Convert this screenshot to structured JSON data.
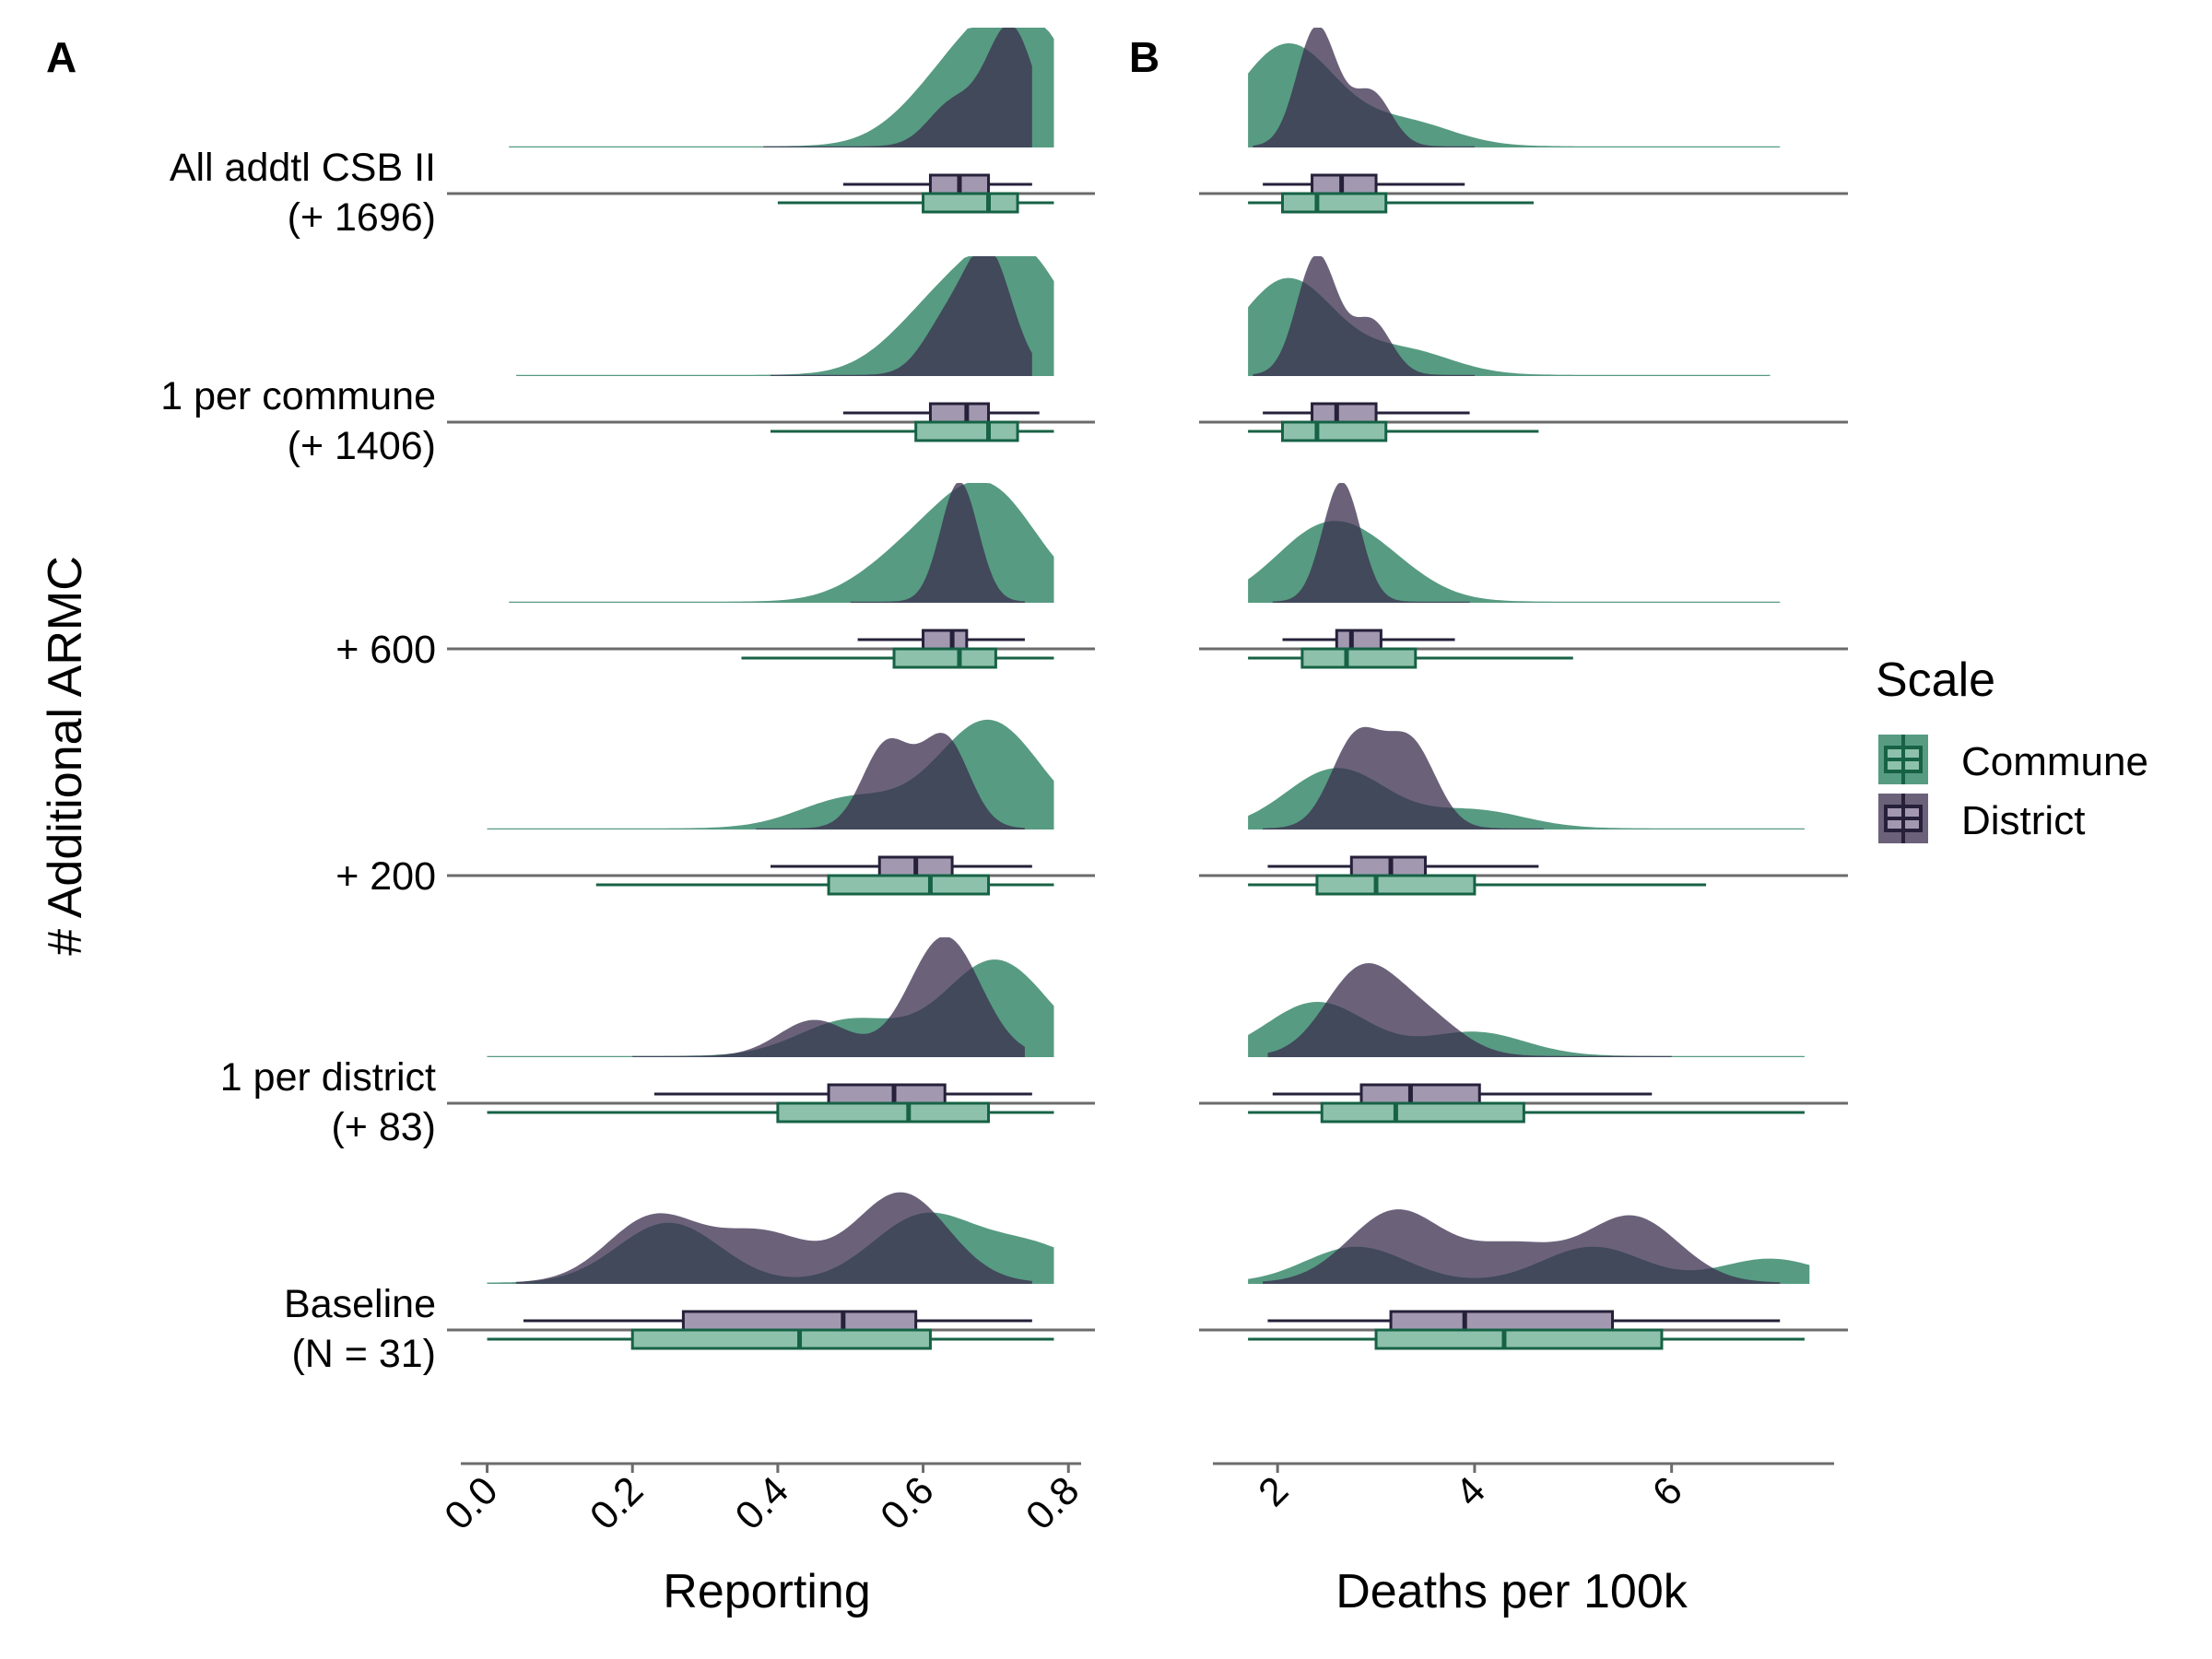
{
  "panels": [
    "A",
    "B"
  ],
  "y_axis_title": "# Additional ARMC",
  "legend": {
    "title": "Scale",
    "items": [
      {
        "label": "Commune",
        "fill": "#1f7a58",
        "line": "#176246"
      },
      {
        "label": "District",
        "fill": "#3a2d4e",
        "line": "#26203a"
      }
    ]
  },
  "chart_data": [
    {
      "type": "box",
      "panel": "A",
      "xlabel": "Reporting",
      "xlim": [
        -0.04,
        0.82
      ],
      "xticks": [
        0.0,
        0.2,
        0.4,
        0.6,
        0.8
      ],
      "xtick_labels": [
        "0.0",
        "0.2",
        "0.4",
        "0.6",
        "0.8"
      ],
      "categories": [
        [
          "All addtl CSB II",
          "(+ 1696)"
        ],
        [
          "1 per commune",
          "(+ 1406)"
        ],
        [
          "+ 600"
        ],
        [
          "+ 200"
        ],
        [
          "1 per district",
          "(+ 83)"
        ],
        [
          "Baseline",
          "(N = 31)"
        ]
      ],
      "series": [
        {
          "name": "District",
          "stats": [
            {
              "lo": 0.49,
              "q1": 0.61,
              "med": 0.65,
              "q3": 0.69,
              "hi": 0.75
            },
            {
              "lo": 0.49,
              "q1": 0.61,
              "med": 0.66,
              "q3": 0.69,
              "hi": 0.76
            },
            {
              "lo": 0.51,
              "q1": 0.6,
              "med": 0.64,
              "q3": 0.66,
              "hi": 0.74
            },
            {
              "lo": 0.39,
              "q1": 0.54,
              "med": 0.59,
              "q3": 0.64,
              "hi": 0.75
            },
            {
              "lo": 0.23,
              "q1": 0.47,
              "med": 0.56,
              "q3": 0.63,
              "hi": 0.75
            },
            {
              "lo": 0.05,
              "q1": 0.27,
              "med": 0.49,
              "q3": 0.59,
              "hi": 0.75
            }
          ],
          "density_modes": [
            [
              [
                0.72,
                1.0
              ],
              [
                0.64,
                0.35
              ]
            ],
            [
              [
                0.69,
                1.0
              ],
              [
                0.63,
                0.4
              ]
            ],
            [
              [
                0.65,
                1.0
              ]
            ],
            [
              [
                0.55,
                0.7
              ],
              [
                0.63,
                0.75
              ]
            ],
            [
              [
                0.63,
                1.0
              ],
              [
                0.45,
                0.3
              ]
            ],
            [
              [
                0.23,
                0.55
              ],
              [
                0.57,
                0.75
              ],
              [
                0.38,
                0.4
              ]
            ]
          ],
          "density_range": [
            [
              0.38,
              0.75
            ],
            [
              0.39,
              0.75
            ],
            [
              0.5,
              0.74
            ],
            [
              0.37,
              0.74
            ],
            [
              0.2,
              0.74
            ],
            [
              0.04,
              0.75
            ]
          ]
        },
        {
          "name": "Commune",
          "stats": [
            {
              "lo": 0.4,
              "q1": 0.6,
              "med": 0.69,
              "q3": 0.73,
              "hi": 0.78
            },
            {
              "lo": 0.39,
              "q1": 0.59,
              "med": 0.69,
              "q3": 0.73,
              "hi": 0.78
            },
            {
              "lo": 0.35,
              "q1": 0.56,
              "med": 0.65,
              "q3": 0.7,
              "hi": 0.78
            },
            {
              "lo": 0.15,
              "q1": 0.47,
              "med": 0.61,
              "q3": 0.69,
              "hi": 0.78
            },
            {
              "lo": 0.0,
              "q1": 0.4,
              "med": 0.58,
              "q3": 0.69,
              "hi": 0.78
            },
            {
              "lo": 0.0,
              "q1": 0.2,
              "med": 0.43,
              "q3": 0.61,
              "hi": 0.78
            }
          ],
          "density_modes": [
            [
              [
                0.74,
                1.0
              ],
              [
                0.64,
                0.5
              ]
            ],
            [
              [
                0.73,
                1.0
              ],
              [
                0.62,
                0.5
              ]
            ],
            [
              [
                0.69,
                0.9
              ],
              [
                0.58,
                0.35
              ]
            ],
            [
              [
                0.69,
                0.9
              ],
              [
                0.5,
                0.25
              ]
            ],
            [
              [
                0.7,
                0.8
              ],
              [
                0.5,
                0.3
              ]
            ],
            [
              [
                0.25,
                0.5
              ],
              [
                0.6,
                0.55
              ],
              [
                0.75,
                0.3
              ]
            ]
          ],
          "density_range": [
            [
              0.03,
              0.78
            ],
            [
              0.04,
              0.78
            ],
            [
              0.03,
              0.78
            ],
            [
              0.0,
              0.78
            ],
            [
              0.0,
              0.78
            ],
            [
              0.0,
              0.78
            ]
          ]
        }
      ]
    },
    {
      "type": "box",
      "panel": "B",
      "xlabel": "Deaths per 100k",
      "xlim": [
        1.25,
        7.65
      ],
      "xticks": [
        2,
        4,
        6
      ],
      "xtick_labels": [
        "2",
        "4",
        "6"
      ],
      "series": [
        {
          "name": "District",
          "stats": [
            {
              "lo": 1.85,
              "q1": 2.35,
              "med": 2.65,
              "q3": 3.0,
              "hi": 3.9
            },
            {
              "lo": 1.85,
              "q1": 2.35,
              "med": 2.6,
              "q3": 3.0,
              "hi": 3.95
            },
            {
              "lo": 2.05,
              "q1": 2.6,
              "med": 2.75,
              "q3": 3.05,
              "hi": 3.8
            },
            {
              "lo": 1.9,
              "q1": 2.75,
              "med": 3.15,
              "q3": 3.5,
              "hi": 4.65
            },
            {
              "lo": 1.95,
              "q1": 2.85,
              "med": 3.35,
              "q3": 4.05,
              "hi": 5.8
            },
            {
              "lo": 1.9,
              "q1": 3.15,
              "med": 3.9,
              "q3": 5.4,
              "hi": 7.1
            }
          ],
          "density_modes": [
            [
              [
                2.4,
                1.0
              ],
              [
                2.95,
                0.45
              ]
            ],
            [
              [
                2.4,
                1.0
              ],
              [
                2.95,
                0.45
              ]
            ],
            [
              [
                2.65,
                1.0
              ]
            ],
            [
              [
                2.8,
                0.75
              ],
              [
                3.35,
                0.7
              ]
            ],
            [
              [
                2.85,
                0.7
              ],
              [
                3.5,
                0.3
              ]
            ],
            [
              [
                3.2,
                0.6
              ],
              [
                5.6,
                0.55
              ],
              [
                4.4,
                0.3
              ]
            ]
          ],
          "density_range": [
            [
              1.75,
              4.0
            ],
            [
              1.75,
              4.0
            ],
            [
              1.95,
              3.95
            ],
            [
              1.85,
              4.7
            ],
            [
              1.9,
              6.0
            ],
            [
              1.85,
              7.1
            ]
          ]
        },
        {
          "name": "Commune",
          "stats": [
            {
              "lo": 1.7,
              "q1": 2.05,
              "med": 2.4,
              "q3": 3.1,
              "hi": 4.6
            },
            {
              "lo": 1.7,
              "q1": 2.05,
              "med": 2.4,
              "q3": 3.1,
              "hi": 4.65
            },
            {
              "lo": 1.7,
              "q1": 2.25,
              "med": 2.7,
              "q3": 3.4,
              "hi": 5.0
            },
            {
              "lo": 1.7,
              "q1": 2.4,
              "med": 3.0,
              "q3": 4.0,
              "hi": 6.35
            },
            {
              "lo": 1.7,
              "q1": 2.45,
              "med": 3.2,
              "q3": 4.5,
              "hi": 7.35
            },
            {
              "lo": 1.7,
              "q1": 3.0,
              "med": 4.3,
              "q3": 5.9,
              "hi": 7.35
            }
          ],
          "density_modes": [
            [
              [
                2.1,
                0.85
              ],
              [
                3.3,
                0.2
              ]
            ],
            [
              [
                2.1,
                0.8
              ],
              [
                3.3,
                0.2
              ]
            ],
            [
              [
                2.4,
                0.5
              ],
              [
                3.0,
                0.3
              ]
            ],
            [
              [
                2.6,
                0.5
              ],
              [
                4.0,
                0.15
              ]
            ],
            [
              [
                2.4,
                0.45
              ],
              [
                4.0,
                0.2
              ]
            ],
            [
              [
                2.8,
                0.3
              ],
              [
                5.2,
                0.3
              ],
              [
                7.0,
                0.2
              ]
            ]
          ],
          "density_range": [
            [
              1.7,
              7.1
            ],
            [
              1.7,
              7.0
            ],
            [
              1.7,
              7.1
            ],
            [
              1.7,
              7.35
            ],
            [
              1.7,
              7.35
            ],
            [
              1.7,
              7.4
            ]
          ]
        }
      ]
    }
  ]
}
